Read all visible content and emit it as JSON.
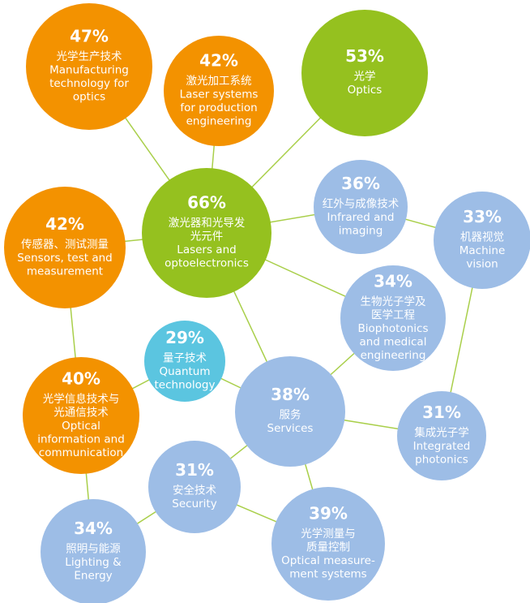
{
  "nodes": [
    {
      "pct": "47%",
      "lines": [
        "光学生产技术",
        "Manufacturing",
        "technology for",
        "optics"
      ]
    },
    {
      "pct": "42%",
      "lines": [
        "激光加工系统",
        "Laser systems",
        "for production",
        "engineering"
      ]
    },
    {
      "pct": "53%",
      "lines": [
        "光学",
        "Optics"
      ]
    },
    {
      "pct": "66%",
      "lines": [
        "激光器和光导发",
        "光元件",
        "Lasers and",
        "optoelectronics"
      ]
    },
    {
      "pct": "42%",
      "lines": [
        "传感器、测试测量",
        "Sensors, test and",
        "measurement"
      ]
    },
    {
      "pct": "36%",
      "lines": [
        "红外与成像技术",
        "Infrared and",
        "imaging"
      ]
    },
    {
      "pct": "33%",
      "lines": [
        "机器视觉",
        "Machine",
        "vision"
      ]
    },
    {
      "pct": "29%",
      "lines": [
        "量子技术",
        "Quantum",
        "technology"
      ]
    },
    {
      "pct": "34%",
      "lines": [
        "生物光子学及",
        "医学工程",
        "Biophotonics",
        "and medical",
        "engineering"
      ]
    },
    {
      "pct": "40%",
      "lines": [
        "光学信息技术与",
        "光通信技术",
        "Optical",
        "information and",
        "communication"
      ]
    },
    {
      "pct": "38%",
      "lines": [
        "服务",
        "Services"
      ]
    },
    {
      "pct": "31%",
      "lines": [
        "集成光子学",
        "Integrated",
        "photonics"
      ]
    },
    {
      "pct": "31%",
      "lines": [
        "安全技术",
        "Security"
      ]
    },
    {
      "pct": "39%",
      "lines": [
        "光学测量与",
        "质量控制",
        "Optical measure-",
        "ment systems"
      ]
    },
    {
      "pct": "34%",
      "lines": [
        "照明与能源",
        "Lighting &",
        "Energy"
      ]
    }
  ]
}
